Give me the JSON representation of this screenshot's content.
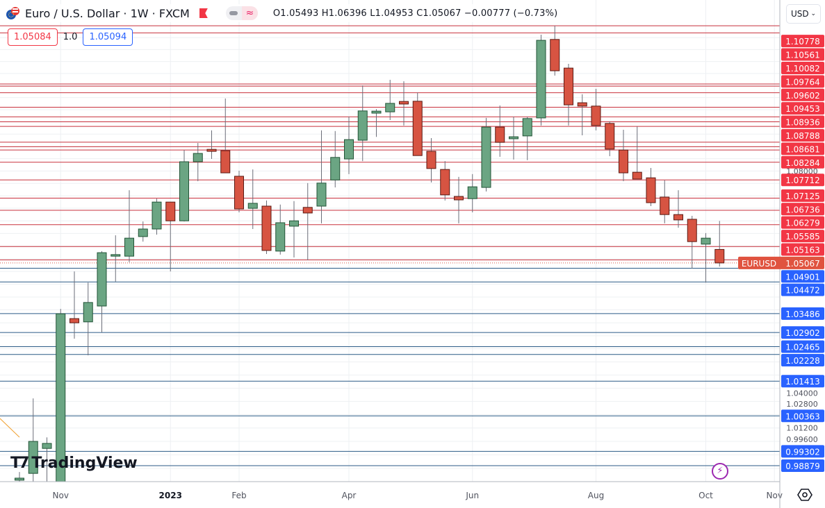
{
  "header": {
    "title": "Euro / U.S. Dollar · 1W · FXCM",
    "ohlc": "O1.05493 H1.06396 L1.04953 C1.05067 −0.00777 (−0.73%)",
    "sell_price": "1.05084",
    "spread": "1.0",
    "buy_price": "1.05094",
    "currency": "USD",
    "icons": [
      "eu-us-flag-icon",
      "red-flag-icon",
      "visibility-toggle-icon",
      "wave-icon"
    ]
  },
  "logo": "TradingView",
  "colors": {
    "up": "#6ba583",
    "up_border": "#225437",
    "down": "#d75442",
    "down_border": "#5b1a13",
    "resistance": "#c8303c",
    "support": "#2a5a86",
    "resistance_label": "#f23645",
    "support_label": "#2962ff",
    "current_label": "#e0533f"
  },
  "chart_data": {
    "type": "candlestick",
    "symbol_label": "EURUSD",
    "current_price": "1.05067",
    "y_scale": "log",
    "ylim": [
      0.98,
      1.13
    ],
    "grid": true,
    "x_ticks": [
      {
        "date": "2022-11-06",
        "label": "Nov"
      },
      {
        "date": "2023-01-01",
        "label": "2023"
      },
      {
        "date": "2023-02-05",
        "label": "Feb"
      },
      {
        "date": "2023-04-02",
        "label": "Apr"
      },
      {
        "date": "2023-06-04",
        "label": "Jun"
      },
      {
        "date": "2023-08-06",
        "label": "Aug"
      },
      {
        "date": "2023-10-01",
        "label": "Oct"
      },
      {
        "date": "2023-11-05",
        "label": "Nov"
      }
    ],
    "y_ticks": [
      "1.08000",
      "1.04000",
      "1.02800",
      "1.01200",
      "0.99600"
    ],
    "resistance_levels": [
      "1.10778",
      "1.10561",
      "1.10082",
      "1.09764",
      "1.09602",
      "1.09453",
      "1.08936",
      "1.08788",
      "1.08681",
      "1.08284",
      "1.07712",
      "1.07125",
      "1.06736",
      "1.06279",
      "1.05585",
      "1.05163"
    ],
    "support_levels": [
      "1.04901",
      "1.04472",
      "1.03486",
      "1.02902",
      "1.02465",
      "1.02228",
      "1.01413",
      "1.00363",
      "0.99302",
      "0.98879"
    ],
    "unlabeled_levels": [
      1.128,
      1.1256,
      1.1085
    ],
    "candles": [
      {
        "date": "2022-10-16",
        "o": 0.9845,
        "h": 0.9869,
        "l": 0.978,
        "c": 0.9851
      },
      {
        "date": "2022-10-23",
        "o": 0.9865,
        "h": 1.0089,
        "l": 0.9705,
        "c": 0.996
      },
      {
        "date": "2022-10-30",
        "o": 0.9939,
        "h": 0.9972,
        "l": 0.973,
        "c": 0.9954
      },
      {
        "date": "2022-11-06",
        "o": 0.976,
        "h": 1.0363,
        "l": 0.973,
        "c": 1.0348
      },
      {
        "date": "2022-11-13",
        "o": 1.0333,
        "h": 1.048,
        "l": 1.0271,
        "c": 1.032
      },
      {
        "date": "2022-11-20",
        "o": 1.0323,
        "h": 1.0445,
        "l": 1.022,
        "c": 1.0383
      },
      {
        "date": "2022-11-27",
        "o": 1.0372,
        "h": 1.0544,
        "l": 1.029,
        "c": 1.0539
      },
      {
        "date": "2022-12-04",
        "o": 1.0528,
        "h": 1.0594,
        "l": 1.0448,
        "c": 1.0533
      },
      {
        "date": "2022-12-11",
        "o": 1.0528,
        "h": 1.0738,
        "l": 1.0509,
        "c": 1.0585
      },
      {
        "date": "2022-12-18",
        "o": 1.059,
        "h": 1.0638,
        "l": 1.0574,
        "c": 1.0614
      },
      {
        "date": "2022-12-25",
        "o": 1.0614,
        "h": 1.0711,
        "l": 1.0596,
        "c": 1.07
      },
      {
        "date": "2023-01-01",
        "o": 1.07,
        "h": 1.07,
        "l": 1.048,
        "c": 1.064
      },
      {
        "date": "2023-01-08",
        "o": 1.064,
        "h": 1.0868,
        "l": 1.0638,
        "c": 1.083
      },
      {
        "date": "2023-01-15",
        "o": 1.083,
        "h": 1.0891,
        "l": 1.0767,
        "c": 1.0857
      },
      {
        "date": "2023-01-22",
        "o": 1.0868,
        "h": 1.0932,
        "l": 1.0839,
        "c": 1.0866
      },
      {
        "date": "2023-01-29",
        "o": 1.0866,
        "h": 1.1037,
        "l": 1.0794,
        "c": 1.0794
      },
      {
        "date": "2023-02-05",
        "o": 1.0783,
        "h": 1.0801,
        "l": 1.0667,
        "c": 1.0678
      },
      {
        "date": "2023-02-12",
        "o": 1.068,
        "h": 1.0805,
        "l": 1.0614,
        "c": 1.0696
      },
      {
        "date": "2023-02-19",
        "o": 1.0687,
        "h": 1.0705,
        "l": 1.0535,
        "c": 1.0546
      },
      {
        "date": "2023-02-26",
        "o": 1.0544,
        "h": 1.0692,
        "l": 1.0533,
        "c": 1.0634
      },
      {
        "date": "2023-03-05",
        "o": 1.0623,
        "h": 1.0703,
        "l": 1.0524,
        "c": 1.064
      },
      {
        "date": "2023-03-12",
        "o": 1.0683,
        "h": 1.0761,
        "l": 1.0515,
        "c": 1.0665
      },
      {
        "date": "2023-03-19",
        "o": 1.0687,
        "h": 1.0932,
        "l": 1.0632,
        "c": 1.0761
      },
      {
        "date": "2023-03-26",
        "o": 1.0771,
        "h": 1.093,
        "l": 1.0747,
        "c": 1.0844
      },
      {
        "date": "2023-04-02",
        "o": 1.0839,
        "h": 1.0977,
        "l": 1.079,
        "c": 1.0902
      },
      {
        "date": "2023-04-09",
        "o": 1.09,
        "h": 1.108,
        "l": 1.0832,
        "c": 1.0996
      },
      {
        "date": "2023-04-16",
        "o": 1.0991,
        "h": 1.1002,
        "l": 1.0911,
        "c": 1.0993
      },
      {
        "date": "2023-04-23",
        "o": 1.0993,
        "h": 1.1099,
        "l": 1.0966,
        "c": 1.1021
      },
      {
        "date": "2023-04-30",
        "o": 1.1025,
        "h": 1.1094,
        "l": 1.0948,
        "c": 1.1021
      },
      {
        "date": "2023-05-07",
        "o": 1.1028,
        "h": 1.1057,
        "l": 1.085,
        "c": 1.085
      },
      {
        "date": "2023-05-14",
        "o": 1.0864,
        "h": 1.0907,
        "l": 1.0763,
        "c": 1.0808
      },
      {
        "date": "2023-05-21",
        "o": 1.0805,
        "h": 1.0832,
        "l": 1.0705,
        "c": 1.0723
      },
      {
        "date": "2023-05-28",
        "o": 1.0718,
        "h": 1.0781,
        "l": 1.0632,
        "c": 1.0707
      },
      {
        "date": "2023-06-04",
        "o": 1.0711,
        "h": 1.079,
        "l": 1.0667,
        "c": 1.0749
      },
      {
        "date": "2023-06-11",
        "o": 1.0747,
        "h": 1.0973,
        "l": 1.0734,
        "c": 1.0943
      },
      {
        "date": "2023-06-18",
        "o": 1.0943,
        "h": 1.1014,
        "l": 1.0846,
        "c": 1.0893
      },
      {
        "date": "2023-06-25",
        "o": 1.0907,
        "h": 1.0977,
        "l": 1.0837,
        "c": 1.0909
      },
      {
        "date": "2023-07-02",
        "o": 1.0914,
        "h": 1.0977,
        "l": 1.0835,
        "c": 1.0971
      },
      {
        "date": "2023-07-09",
        "o": 1.0973,
        "h": 1.125,
        "l": 1.0948,
        "c": 1.1231
      },
      {
        "date": "2023-07-16",
        "o": 1.1234,
        "h": 1.128,
        "l": 1.1113,
        "c": 1.1129
      },
      {
        "date": "2023-07-23",
        "o": 1.1138,
        "h": 1.1152,
        "l": 1.0948,
        "c": 1.1016
      },
      {
        "date": "2023-07-30",
        "o": 1.1023,
        "h": 1.1051,
        "l": 1.0916,
        "c": 1.1012
      },
      {
        "date": "2023-08-06",
        "o": 1.1012,
        "h": 1.1069,
        "l": 1.0932,
        "c": 1.0948
      },
      {
        "date": "2023-08-13",
        "o": 1.0955,
        "h": 1.0962,
        "l": 1.0848,
        "c": 1.0871
      },
      {
        "date": "2023-08-20",
        "o": 1.0868,
        "h": 1.0934,
        "l": 1.0767,
        "c": 1.0794
      },
      {
        "date": "2023-08-27",
        "o": 1.0796,
        "h": 1.0945,
        "l": 1.0774,
        "c": 1.0774
      },
      {
        "date": "2023-09-03",
        "o": 1.0778,
        "h": 1.081,
        "l": 1.0687,
        "c": 1.0698
      },
      {
        "date": "2023-09-10",
        "o": 1.0716,
        "h": 1.077,
        "l": 1.0632,
        "c": 1.066
      },
      {
        "date": "2023-09-17",
        "o": 1.066,
        "h": 1.0738,
        "l": 1.0618,
        "c": 1.0643
      },
      {
        "date": "2023-09-24",
        "o": 1.0645,
        "h": 1.0656,
        "l": 1.0489,
        "c": 1.0574
      },
      {
        "date": "2023-10-01",
        "o": 1.0566,
        "h": 1.0601,
        "l": 1.0445,
        "c": 1.0585
      },
      {
        "date": "2023-10-08",
        "o": 1.05493,
        "h": 1.06396,
        "l": 1.04953,
        "c": 1.05067
      }
    ]
  }
}
